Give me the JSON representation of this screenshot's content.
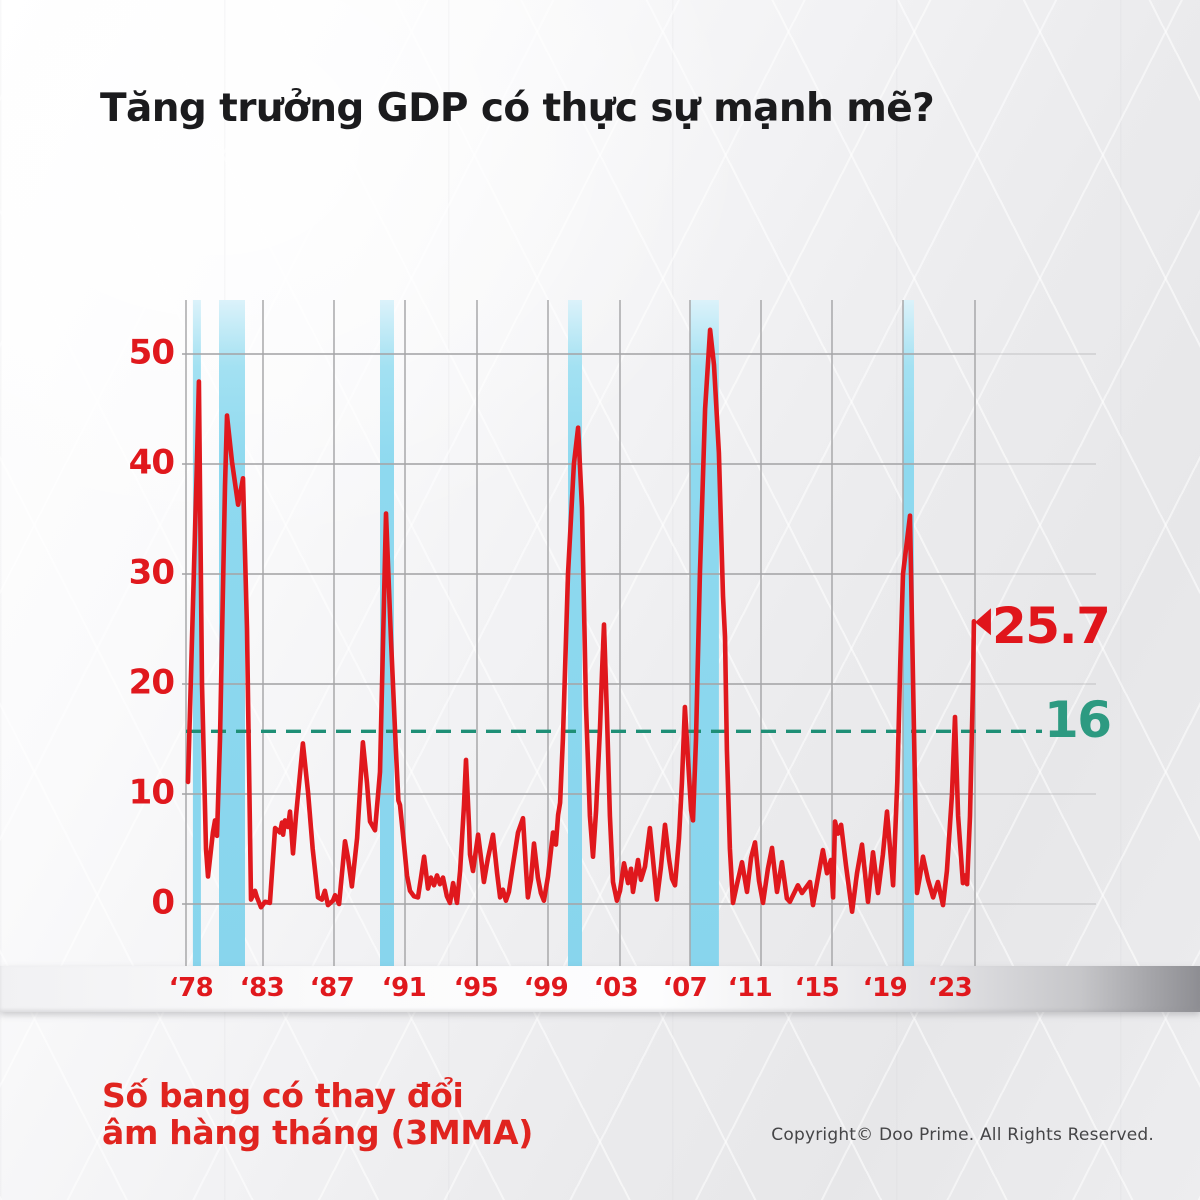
{
  "title": "Tăng trưởng GDP có thực sự mạnh mẽ?",
  "annotations": {
    "last_value": "25.7",
    "reference_value": "16",
    "marker_icon": "left-arrowhead"
  },
  "footnote": {
    "line1": "Số bang có thay đổi",
    "line2": "âm hàng tháng (3MMA)"
  },
  "copyright": "Copyright© Doo Prime. All Rights Reserved.",
  "colors": {
    "line_red": "#e0181d",
    "label_red": "#e0151b",
    "teal": "#1e8f76",
    "teal_label": "#2d9a81",
    "recession_band_blue": "#8ed9ef",
    "grid_gray": "#a6a6a8",
    "title_dark": "#1b1b1d"
  },
  "chart_data": {
    "type": "line",
    "title": "Tăng trưởng GDP có thực sự mạnh mẽ?",
    "ylabel": "",
    "xlabel": "",
    "grid": true,
    "y_ticks": [
      0,
      10,
      20,
      30,
      40,
      50
    ],
    "ylim": [
      -3,
      55
    ],
    "x_tick_labels": [
      "‘78",
      "‘83",
      "‘87",
      "‘91",
      "‘95",
      "‘99",
      "‘03",
      "‘07",
      "‘11",
      "‘15",
      "‘19",
      "‘23"
    ],
    "x_tick_years": [
      1978,
      1983,
      1987,
      1991,
      1995,
      1999,
      2003,
      2007,
      2011,
      2015,
      2019,
      2023
    ],
    "reference_line": {
      "label": "16",
      "value": 15.7,
      "style": "dashed",
      "position": "horizontal"
    },
    "last_point_label": "25.7",
    "recession_bands": [
      [
        1978.45,
        1978.97
      ],
      [
        1980.14,
        1981.83
      ],
      [
        1989.59,
        1990.38
      ],
      [
        2000.11,
        2000.89
      ],
      [
        2007.0,
        2008.63
      ],
      [
        2019.0,
        2019.61
      ]
    ],
    "series": [
      {
        "name": "Số bang có thay đổi âm hàng tháng (3MMA)",
        "color": "#e0181d",
        "points": [
          [
            1978.13,
            11.1
          ],
          [
            1978.71,
            40.0
          ],
          [
            1978.84,
            47.5
          ],
          [
            1979.04,
            20.0
          ],
          [
            1979.3,
            5.0
          ],
          [
            1979.43,
            2.5
          ],
          [
            1979.75,
            6.5
          ],
          [
            1979.88,
            7.6
          ],
          [
            1980.01,
            6.2
          ],
          [
            1980.21,
            15.0
          ],
          [
            1980.53,
            38.0
          ],
          [
            1980.66,
            44.4
          ],
          [
            1980.99,
            40.2
          ],
          [
            1981.38,
            36.3
          ],
          [
            1981.7,
            38.7
          ],
          [
            1981.96,
            25.0
          ],
          [
            1982.22,
            0.4
          ],
          [
            1982.48,
            1.2
          ],
          [
            1982.61,
            0.6
          ],
          [
            1982.87,
            -0.3
          ],
          [
            1983.11,
            0.2
          ],
          [
            1983.39,
            0.1
          ],
          [
            1983.68,
            6.9
          ],
          [
            1983.96,
            6.5
          ],
          [
            1984.07,
            7.4
          ],
          [
            1984.13,
            6.3
          ],
          [
            1984.24,
            7.6
          ],
          [
            1984.41,
            7.0
          ],
          [
            1984.52,
            8.4
          ],
          [
            1984.69,
            4.6
          ],
          [
            1984.86,
            8.0
          ],
          [
            1985.25,
            14.6
          ],
          [
            1985.54,
            10.1
          ],
          [
            1985.8,
            5.0
          ],
          [
            1986.1,
            0.6
          ],
          [
            1986.32,
            0.4
          ],
          [
            1986.49,
            1.2
          ],
          [
            1986.66,
            -0.1
          ],
          [
            1986.94,
            0.3
          ],
          [
            1987.06,
            0.8
          ],
          [
            1987.29,
            0.0
          ],
          [
            1987.62,
            5.7
          ],
          [
            1987.79,
            4.2
          ],
          [
            1988.01,
            1.6
          ],
          [
            1988.3,
            6.0
          ],
          [
            1988.63,
            14.7
          ],
          [
            1988.86,
            11.0
          ],
          [
            1989.03,
            7.5
          ],
          [
            1989.31,
            6.7
          ],
          [
            1989.59,
            12.0
          ],
          [
            1989.82,
            28.0
          ],
          [
            1989.93,
            35.5
          ],
          [
            1990.21,
            24.0
          ],
          [
            1990.49,
            14.0
          ],
          [
            1990.63,
            9.4
          ],
          [
            1990.72,
            9.0
          ],
          [
            1990.94,
            5.5
          ],
          [
            1991.11,
            2.6
          ],
          [
            1991.28,
            1.2
          ],
          [
            1991.5,
            0.7
          ],
          [
            1991.72,
            0.6
          ],
          [
            1991.89,
            2.4
          ],
          [
            1992.06,
            4.3
          ],
          [
            1992.28,
            1.4
          ],
          [
            1992.44,
            2.4
          ],
          [
            1992.61,
            1.7
          ],
          [
            1992.78,
            2.6
          ],
          [
            1992.94,
            1.8
          ],
          [
            1993.11,
            2.4
          ],
          [
            1993.33,
            0.7
          ],
          [
            1993.5,
            0.1
          ],
          [
            1993.67,
            1.9
          ],
          [
            1993.89,
            0.1
          ],
          [
            1994.06,
            3.0
          ],
          [
            1994.28,
            9.0
          ],
          [
            1994.39,
            13.1
          ],
          [
            1994.56,
            7.0
          ],
          [
            1994.61,
            4.5
          ],
          [
            1994.78,
            3.0
          ],
          [
            1995.06,
            6.3
          ],
          [
            1995.28,
            3.5
          ],
          [
            1995.39,
            2.0
          ],
          [
            1995.62,
            4.2
          ],
          [
            1995.9,
            6.3
          ],
          [
            1996.13,
            2.8
          ],
          [
            1996.3,
            0.6
          ],
          [
            1996.46,
            1.3
          ],
          [
            1996.63,
            0.3
          ],
          [
            1996.8,
            1.1
          ],
          [
            1997.02,
            3.5
          ],
          [
            1997.31,
            6.5
          ],
          [
            1997.59,
            7.8
          ],
          [
            1997.76,
            3.2
          ],
          [
            1997.87,
            0.6
          ],
          [
            1998.04,
            2.2
          ],
          [
            1998.21,
            5.5
          ],
          [
            1998.43,
            2.4
          ],
          [
            1998.6,
            1.0
          ],
          [
            1998.77,
            0.3
          ],
          [
            1999.0,
            2.5
          ],
          [
            1999.28,
            6.5
          ],
          [
            1999.44,
            5.4
          ],
          [
            1999.56,
            8.1
          ],
          [
            1999.67,
            9.2
          ],
          [
            1999.83,
            15.0
          ],
          [
            2000.11,
            30.0
          ],
          [
            2000.44,
            40.0
          ],
          [
            2000.67,
            43.3
          ],
          [
            2000.89,
            36.0
          ],
          [
            2001.11,
            18.0
          ],
          [
            2001.33,
            8.0
          ],
          [
            2001.5,
            4.3
          ],
          [
            2001.67,
            8.5
          ],
          [
            2001.89,
            16.0
          ],
          [
            2002.0,
            21.0
          ],
          [
            2002.11,
            25.4
          ],
          [
            2002.28,
            17.0
          ],
          [
            2002.44,
            8.0
          ],
          [
            2002.61,
            2.0
          ],
          [
            2002.83,
            0.3
          ],
          [
            2003.0,
            1.2
          ],
          [
            2003.23,
            3.7
          ],
          [
            2003.46,
            1.9
          ],
          [
            2003.63,
            3.2
          ],
          [
            2003.74,
            1.1
          ],
          [
            2004.03,
            4.0
          ],
          [
            2004.2,
            2.2
          ],
          [
            2004.43,
            3.4
          ],
          [
            2004.71,
            6.9
          ],
          [
            2004.94,
            3.1
          ],
          [
            2005.11,
            0.4
          ],
          [
            2005.34,
            3.3
          ],
          [
            2005.57,
            7.2
          ],
          [
            2005.8,
            4.1
          ],
          [
            2005.97,
            2.3
          ],
          [
            2006.14,
            1.7
          ],
          [
            2006.37,
            6.0
          ],
          [
            2006.54,
            11.0
          ],
          [
            2006.71,
            17.9
          ],
          [
            2006.89,
            13.0
          ],
          [
            2007.06,
            8.5
          ],
          [
            2007.17,
            7.6
          ],
          [
            2007.34,
            15.0
          ],
          [
            2007.56,
            30.0
          ],
          [
            2007.85,
            45.0
          ],
          [
            2008.13,
            52.2
          ],
          [
            2008.35,
            49.0
          ],
          [
            2008.63,
            41.0
          ],
          [
            2008.86,
            28.0
          ],
          [
            2008.97,
            24.3
          ],
          [
            2009.08,
            14.0
          ],
          [
            2009.25,
            5.0
          ],
          [
            2009.42,
            0.1
          ],
          [
            2009.65,
            1.8
          ],
          [
            2009.93,
            3.8
          ],
          [
            2010.21,
            1.1
          ],
          [
            2010.44,
            4.2
          ],
          [
            2010.66,
            5.6
          ],
          [
            2010.89,
            2.1
          ],
          [
            2011.11,
            0.1
          ],
          [
            2011.39,
            3.2
          ],
          [
            2011.62,
            5.1
          ],
          [
            2011.9,
            1.1
          ],
          [
            2012.18,
            3.8
          ],
          [
            2012.46,
            0.5
          ],
          [
            2012.63,
            0.2
          ],
          [
            2013.08,
            1.7
          ],
          [
            2013.31,
            1.0
          ],
          [
            2013.76,
            2.0
          ],
          [
            2013.93,
            -0.1
          ],
          [
            2014.49,
            4.9
          ],
          [
            2014.72,
            2.8
          ],
          [
            2014.94,
            4.0
          ],
          [
            2015.06,
            0.6
          ],
          [
            2015.17,
            7.5
          ],
          [
            2015.34,
            6.4
          ],
          [
            2015.51,
            7.2
          ],
          [
            2015.79,
            3.5
          ],
          [
            2016.13,
            -0.7
          ],
          [
            2016.41,
            2.8
          ],
          [
            2016.69,
            5.4
          ],
          [
            2017.03,
            0.2
          ],
          [
            2017.31,
            4.7
          ],
          [
            2017.59,
            1.0
          ],
          [
            2017.87,
            4.5
          ],
          [
            2018.1,
            8.4
          ],
          [
            2018.44,
            1.7
          ],
          [
            2018.68,
            11.1
          ],
          [
            2018.85,
            22.0
          ],
          [
            2019.0,
            30.0
          ],
          [
            2019.39,
            35.3
          ],
          [
            2019.56,
            20.0
          ],
          [
            2019.78,
            1.0
          ],
          [
            2019.94,
            2.5
          ],
          [
            2020.11,
            4.3
          ],
          [
            2020.39,
            2.2
          ],
          [
            2020.67,
            0.6
          ],
          [
            2020.94,
            2.0
          ],
          [
            2021.22,
            -0.1
          ],
          [
            2021.44,
            3.0
          ],
          [
            2021.72,
            10.0
          ],
          [
            2021.89,
            17.0
          ],
          [
            2022.06,
            8.0
          ],
          [
            2022.33,
            1.9
          ],
          [
            2022.44,
            2.6
          ],
          [
            2022.56,
            1.8
          ],
          [
            2022.72,
            8.0
          ],
          [
            2022.89,
            20.0
          ],
          [
            2022.94,
            25.7
          ]
        ]
      }
    ]
  }
}
